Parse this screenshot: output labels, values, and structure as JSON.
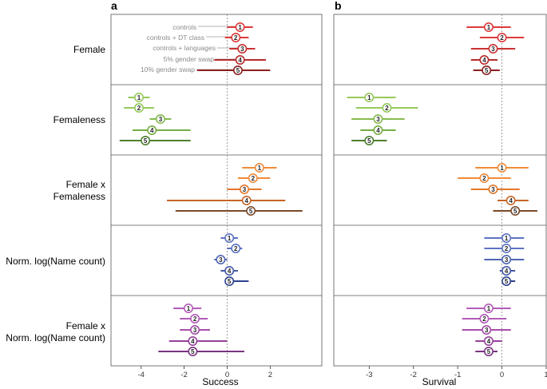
{
  "chart_data": {
    "type": "forest",
    "panels": [
      {
        "letter": "a",
        "xlabel": "Success",
        "xlim": [
          -5.4,
          4.4
        ],
        "ticks": [
          -4,
          -2,
          0,
          2
        ],
        "tick_labels": [
          "-4",
          "-2",
          "0",
          "2"
        ]
      },
      {
        "letter": "b",
        "xlabel": "Survival",
        "xlim": [
          -3.8,
          1.0
        ],
        "ticks": [
          -3,
          -2,
          -1,
          0,
          1
        ],
        "tick_labels": [
          "-3",
          "-2",
          "-1",
          "0",
          "1"
        ]
      }
    ],
    "model_annotations": [
      "controls",
      "controls + DT class",
      "controls + languages",
      "5% gender swap",
      "10% gender swap"
    ],
    "groups": [
      {
        "label_lines": [
          "Female"
        ],
        "colors": [
          "#dd3b3b",
          "#dd3b3b",
          "#c93232",
          "#b52a2a",
          "#8c2020"
        ],
        "a": [
          [
            0.6,
            0.0,
            1.2
          ],
          [
            0.4,
            -0.1,
            1.0
          ],
          [
            0.7,
            0.1,
            1.3
          ],
          [
            0.6,
            -0.6,
            1.8
          ],
          [
            0.5,
            -1.4,
            2.0
          ]
        ],
        "b": [
          [
            -0.3,
            -0.8,
            0.2
          ],
          [
            0.0,
            -0.5,
            0.5
          ],
          [
            -0.2,
            -0.7,
            0.3
          ],
          [
            -0.4,
            -0.7,
            -0.1
          ],
          [
            -0.35,
            -0.65,
            -0.05
          ]
        ]
      },
      {
        "label_lines": [
          "Femaleness"
        ],
        "colors": [
          "#96c95a",
          "#96c95a",
          "#86bb4e",
          "#76ad42",
          "#4e7f2e"
        ],
        "a": [
          [
            -4.1,
            -4.6,
            -3.6
          ],
          [
            -4.1,
            -4.8,
            -3.4
          ],
          [
            -3.1,
            -3.6,
            -2.6
          ],
          [
            -3.5,
            -4.4,
            -1.7
          ],
          [
            -3.8,
            -5.0,
            -1.7
          ]
        ],
        "b": [
          [
            -3.0,
            -3.5,
            -2.4
          ],
          [
            -2.6,
            -3.3,
            -1.9
          ],
          [
            -2.8,
            -3.4,
            -2.2
          ],
          [
            -2.8,
            -3.2,
            -2.4
          ],
          [
            -3.0,
            -3.4,
            -2.6
          ]
        ]
      },
      {
        "label_lines": [
          "Female x",
          "Femaleness"
        ],
        "colors": [
          "#ef8b3a",
          "#ef8b3a",
          "#e3782a",
          "#c76526",
          "#7a4a2a"
        ],
        "a": [
          [
            1.5,
            0.7,
            2.3
          ],
          [
            1.2,
            0.5,
            2.0
          ],
          [
            0.8,
            0.0,
            1.6
          ],
          [
            0.9,
            -2.8,
            2.7
          ],
          [
            1.1,
            -2.4,
            3.5
          ]
        ],
        "b": [
          [
            0.0,
            -0.6,
            0.6
          ],
          [
            -0.4,
            -1.0,
            0.2
          ],
          [
            -0.2,
            -0.7,
            0.4
          ],
          [
            0.2,
            -0.1,
            0.6
          ],
          [
            0.3,
            -0.2,
            0.8
          ]
        ]
      },
      {
        "label_lines": [
          "Norm. log(Name count)"
        ],
        "colors": [
          "#5b73c2",
          "#5b73c2",
          "#4f66b4",
          "#4558a6",
          "#2e4190"
        ],
        "a": [
          [
            0.1,
            -0.3,
            0.5
          ],
          [
            0.4,
            0.0,
            0.7
          ],
          [
            -0.3,
            -0.6,
            0.0
          ],
          [
            0.1,
            -0.3,
            0.5
          ],
          [
            0.1,
            -0.1,
            1.0
          ]
        ],
        "b": [
          [
            0.1,
            -0.4,
            0.5
          ],
          [
            0.1,
            -0.4,
            0.5
          ],
          [
            0.1,
            -0.4,
            0.5
          ],
          [
            0.1,
            -0.05,
            0.3
          ],
          [
            0.1,
            0.0,
            0.3
          ]
        ]
      },
      {
        "label_lines": [
          "Female x",
          "Norm. log(Name count)"
        ],
        "colors": [
          "#b35bb8",
          "#b35bb8",
          "#a54ea9",
          "#95429a",
          "#7a3380"
        ],
        "a": [
          [
            -1.8,
            -2.5,
            -1.2
          ],
          [
            -1.5,
            -2.2,
            -0.9
          ],
          [
            -1.5,
            -2.2,
            -0.8
          ],
          [
            -1.6,
            -2.7,
            0.0
          ],
          [
            -1.6,
            -3.2,
            0.8
          ]
        ],
        "b": [
          [
            -0.3,
            -0.8,
            0.2
          ],
          [
            -0.4,
            -0.9,
            0.1
          ],
          [
            -0.35,
            -0.9,
            0.2
          ],
          [
            -0.3,
            -0.6,
            0.0
          ],
          [
            -0.3,
            -0.6,
            -0.1
          ]
        ]
      }
    ]
  }
}
